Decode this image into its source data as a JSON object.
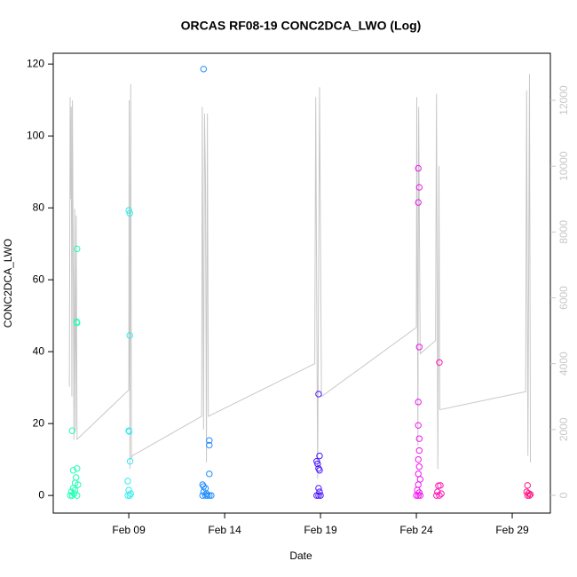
{
  "chart_data": {
    "type": "scatter",
    "title": "ORCAS RF08-19 CONC2DCA_LWO (Log)",
    "x_label": "Date",
    "y_label": "CONC2DCA_LWO",
    "xlim": [
      5.06,
      30.99
    ],
    "xticks": [
      {
        "value": 9,
        "label": "Feb 09"
      },
      {
        "value": 14,
        "label": "Feb 14"
      },
      {
        "value": 19,
        "label": "Feb 19"
      },
      {
        "value": 24,
        "label": "Feb 24"
      },
      {
        "value": 29,
        "label": "Feb 29"
      }
    ],
    "ylim": [
      -4.9,
      123
    ],
    "yticks": [
      0,
      20,
      40,
      60,
      80,
      100,
      120
    ],
    "y2lim": [
      -540,
      13430
    ],
    "y2ticks": [
      0,
      2000,
      4000,
      6000,
      8000,
      10000,
      12000
    ],
    "y2_color": "#c8c8c8",
    "series": [
      {
        "color": "#1effb4",
        "x": [
          6.05,
          6.1,
          6.3,
          6.28,
          6.3,
          6.3,
          6.25,
          6.2,
          6.1,
          6.0,
          5.95,
          6.05,
          6.15,
          6.3,
          6.2,
          6.35
        ],
        "values": [
          18,
          7,
          68.6,
          48.3,
          48,
          7.5,
          5,
          3.5,
          2,
          1,
          0,
          0,
          0.5,
          0,
          1.5,
          3
        ]
      },
      {
        "color": "#30ecec",
        "x": [
          9.0,
          9.05,
          9.05,
          9.0,
          9.02,
          9.07,
          8.95,
          8.95,
          9.05,
          9.1,
          9.0
        ],
        "values": [
          79.3,
          78.5,
          44.5,
          18,
          17.8,
          9.5,
          4,
          0,
          0,
          0.5,
          1.5
        ]
      },
      {
        "color": "#1e8cff",
        "x": [
          12.9,
          13.2,
          13.2,
          13.2,
          12.85,
          12.9,
          13.0,
          12.9,
          12.85,
          13.0,
          13.1,
          13.2,
          13.3,
          13.05
        ],
        "values": [
          118.6,
          15.3,
          14,
          6,
          3,
          2.5,
          2,
          1,
          0,
          0,
          0,
          0,
          0,
          0.5
        ]
      },
      {
        "color": "#4a14ff",
        "x": [
          18.9,
          18.95,
          18.8,
          18.85,
          18.9,
          18.95,
          18.9,
          18.8,
          18.9,
          19.0,
          18.95
        ],
        "values": [
          28.2,
          11,
          9.5,
          8.8,
          7.5,
          7,
          2,
          0,
          0,
          0,
          1
        ]
      },
      {
        "color": "#f014f0",
        "x": [
          24.1,
          24.15,
          24.1,
          24.15,
          24.1,
          24.1,
          24.15,
          24.15,
          24.1,
          24.15,
          24.1,
          24.2,
          24.1,
          24.05,
          24.0,
          24.1,
          24.2,
          24.15
        ],
        "values": [
          91,
          85.7,
          81.5,
          41.3,
          26,
          19.5,
          15.8,
          12.5,
          10,
          8,
          6,
          4.5,
          3,
          1.5,
          0,
          0,
          0,
          0.8
        ]
      },
      {
        "color": "#ff14b4",
        "x": [
          25.2,
          25.15,
          25.25,
          25.1,
          25.05,
          25.2,
          25.3
        ],
        "values": [
          37,
          2.7,
          2.8,
          1,
          0,
          0,
          0.5
        ]
      },
      {
        "color": "#ff1482",
        "x": [
          29.8,
          29.75,
          29.8,
          29.9,
          29.95,
          29.85
        ],
        "values": [
          2.8,
          1,
          0,
          0,
          0.3,
          0.6
        ]
      },
      {
        "color": "#c8c8c8",
        "axis": "y2",
        "style": "line",
        "x": [
          5.9,
          5.94,
          5.98,
          6.0,
          6.03,
          6.06,
          6.1,
          6.14,
          6.18,
          6.22,
          6.26,
          6.3,
          9.0,
          9.02,
          9.06,
          9.1,
          9.14,
          9.18,
          12.8,
          12.83,
          12.9,
          12.95,
          13.0,
          13.05,
          13.1,
          13.15,
          18.7,
          18.75,
          18.85,
          18.95,
          19.05,
          24.0,
          24.02,
          24.08,
          24.12,
          24.2,
          25.0,
          25.05,
          25.12,
          25.18,
          25.22,
          29.7,
          29.75,
          29.82,
          29.9,
          29.95
        ],
        "values": [
          3300,
          12100,
          9000,
          11800,
          3000,
          12000,
          7000,
          1700,
          8700,
          2000,
          8500,
          1700,
          3200,
          12000,
          800,
          12500,
          1100,
          1200,
          2400,
          11800,
          2000,
          11600,
          9500,
          1000,
          11600,
          2400,
          4000,
          12100,
          500,
          12400,
          3000,
          5100,
          12100,
          1500,
          11800,
          4300,
          4700,
          12200,
          800,
          10000,
          2600,
          3150,
          12300,
          1200,
          12800,
          1000
        ]
      }
    ]
  }
}
